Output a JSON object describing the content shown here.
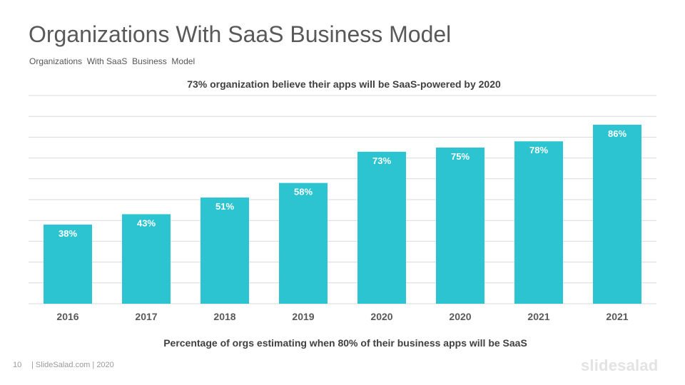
{
  "slide": {
    "title": "Organizations With SaaS Business Model",
    "subtitle": "Organizations  With SaaS  Business  Model",
    "page_number": "10",
    "footer": "| SlideSalad.com | 2020",
    "logo": "slidesalad"
  },
  "colors": {
    "bar": "#2bc4d0",
    "grid": "#d9d9d9",
    "label_inside": "#ffffff",
    "axis_text": "#595959"
  },
  "chart_data": {
    "type": "bar",
    "title": "73% organization believe their apps will be SaaS-powered by 2020",
    "xlabel": "Percentage of orgs estimating when 80% of their business apps will be SaaS",
    "ylabel": "",
    "categories": [
      "2016",
      "2017",
      "2018",
      "2019",
      "2020",
      "2020",
      "2021",
      "2021"
    ],
    "values": [
      38,
      43,
      51,
      58,
      73,
      75,
      78,
      86
    ],
    "data_labels": [
      "38%",
      "43%",
      "51%",
      "58%",
      "73%",
      "75%",
      "78%",
      "86%"
    ],
    "ylim": [
      0,
      100
    ],
    "grid": true,
    "legend": "none"
  }
}
